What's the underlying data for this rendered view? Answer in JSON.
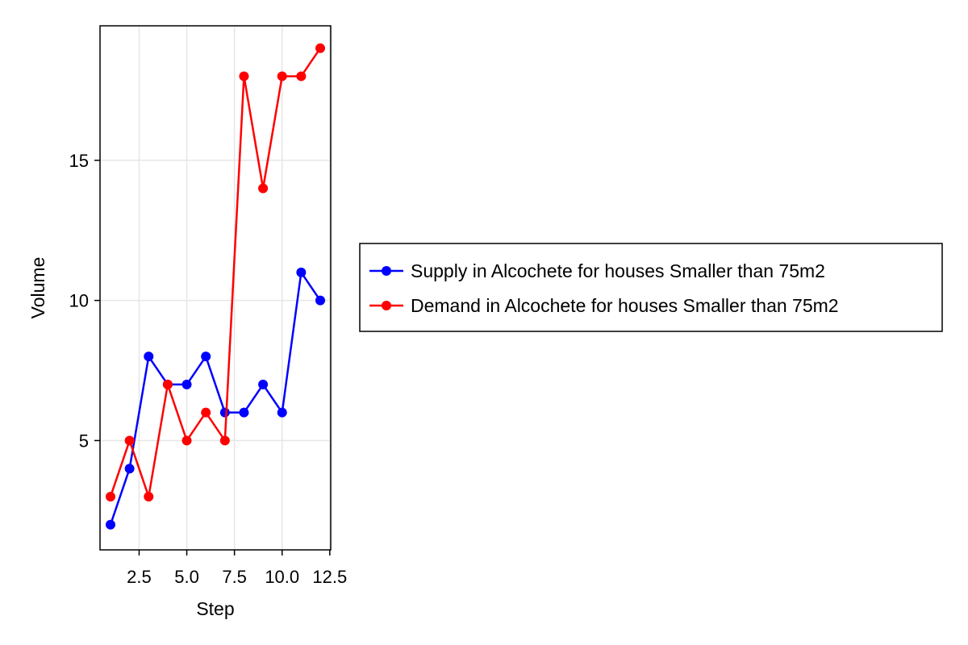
{
  "chart_data": {
    "type": "line",
    "title": "",
    "xlabel": "Step",
    "ylabel": "Volume",
    "xlim": [
      0.45,
      12.55
    ],
    "ylim": [
      1.1,
      19.8
    ],
    "x_ticks": [
      2.5,
      5.0,
      7.5,
      10.0,
      12.5
    ],
    "x_tick_labels": [
      "2.5",
      "5.0",
      "7.5",
      "10.0",
      "12.5"
    ],
    "y_ticks": [
      5,
      10,
      15
    ],
    "y_tick_labels": [
      "5",
      "10",
      "15"
    ],
    "grid": true,
    "legend_position": "right",
    "x": [
      1,
      2,
      3,
      4,
      5,
      6,
      7,
      8,
      9,
      10,
      11,
      12
    ],
    "series": [
      {
        "name": "Supply in Alcochete for houses Smaller than 75m2",
        "color": "#0000ff",
        "values": [
          2,
          4,
          8,
          7,
          7,
          8,
          6,
          6,
          7,
          6,
          11,
          10
        ]
      },
      {
        "name": "Demand in Alcochete for houses Smaller than 75m2",
        "color": "#ff0000",
        "values": [
          3,
          5,
          3,
          7,
          5,
          6,
          5,
          18,
          14,
          18,
          18,
          19
        ]
      }
    ]
  }
}
